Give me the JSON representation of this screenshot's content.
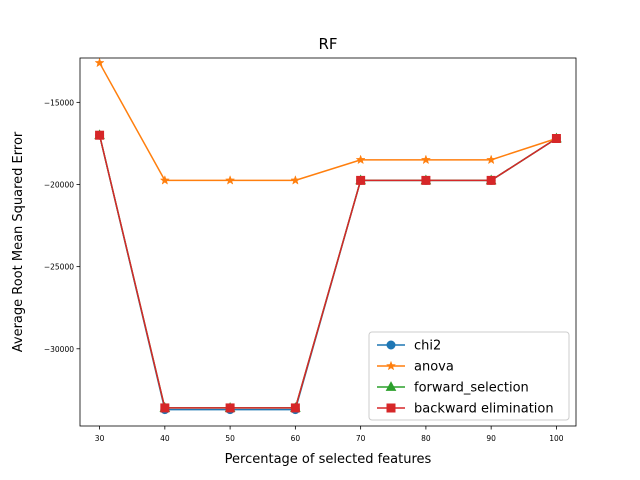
{
  "chart_data": {
    "type": "line",
    "title": "RF",
    "xlabel": "Percentage of selected features",
    "ylabel": "Average Root Mean Squared Error",
    "x": [
      30,
      40,
      50,
      60,
      70,
      80,
      90,
      100
    ],
    "xlim": [
      27,
      103
    ],
    "ylim": [
      -34700,
      -12300
    ],
    "xticks": [
      30,
      40,
      50,
      60,
      70,
      80,
      90,
      100
    ],
    "xtick_labels": [
      "30",
      "40",
      "50",
      "60",
      "70",
      "80",
      "90",
      "100"
    ],
    "yticks": [
      -30000,
      -25000,
      -20000,
      -15000
    ],
    "ytick_labels": [
      "−30000",
      "−25000",
      "−20000",
      "−15000"
    ],
    "grid": false,
    "legend_position": "bottom-right",
    "series": [
      {
        "name": "chi2",
        "marker": "circle",
        "color": "#1f77b4",
        "values": [
          -17000,
          -33700,
          -33700,
          -33700,
          -19750,
          -19750,
          -19750,
          -17200
        ]
      },
      {
        "name": "anova",
        "marker": "star",
        "color": "#ff7f0e",
        "values": [
          -12600,
          -19750,
          -19750,
          -19750,
          -18500,
          -18500,
          -18500,
          -17200
        ]
      },
      {
        "name": "forward_selection",
        "marker": "triangle",
        "color": "#2ca02c",
        "values": [
          -17000,
          -33600,
          -33600,
          -33600,
          -19750,
          -19750,
          -19750,
          -17200
        ]
      },
      {
        "name": "backward elimination",
        "marker": "square",
        "color": "#d62728",
        "values": [
          -17000,
          -33600,
          -33600,
          -33600,
          -19750,
          -19750,
          -19750,
          -17200
        ]
      }
    ]
  }
}
